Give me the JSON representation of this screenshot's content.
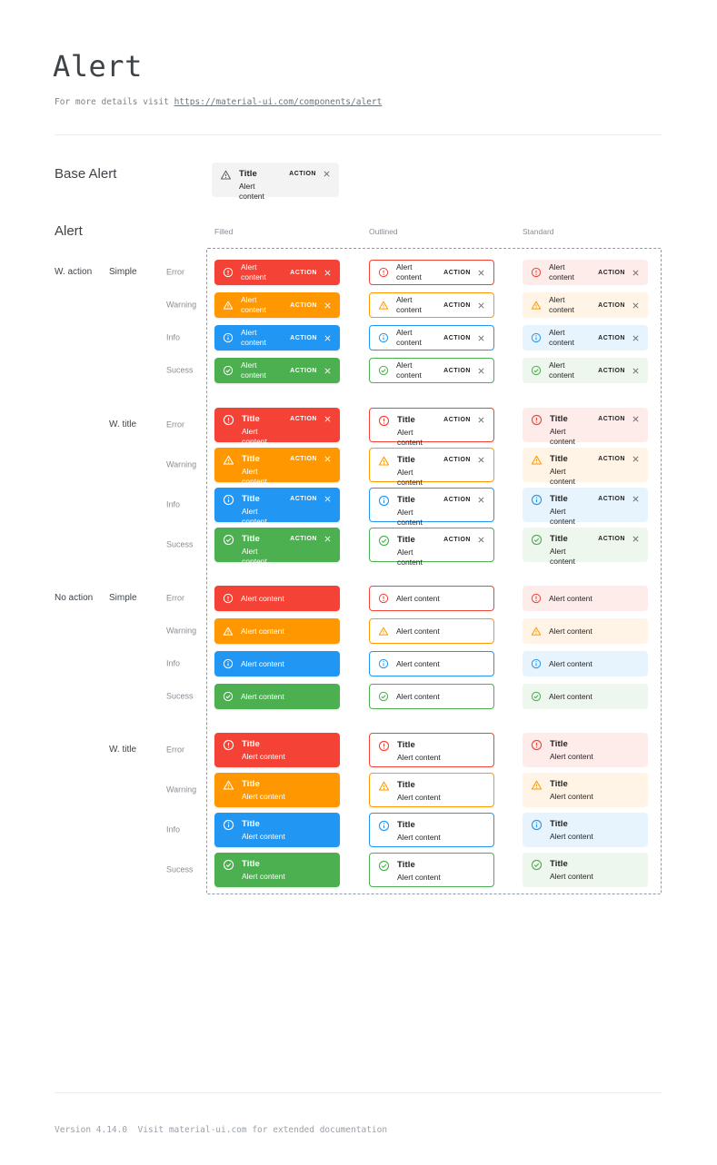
{
  "header": {
    "title": "Alert",
    "subtitle_prefix": "For more details visit ",
    "subtitle_link": "https://material-ui.com/components/alert"
  },
  "base_section": {
    "label": "Base Alert",
    "alert": {
      "title": "Title",
      "content": "Alert content",
      "action_label": "ACTION",
      "icon": "warning-triangle-icon",
      "close_icon": "close-icon",
      "background": "#f3f3f3",
      "icon_color": "#5f6368",
      "text_color": "#202124"
    }
  },
  "grid_section": {
    "label": "Alert",
    "columns": [
      {
        "label": "Filled",
        "variant": "filled"
      },
      {
        "label": "Outlined",
        "variant": "outlined"
      },
      {
        "label": "Standard",
        "variant": "standard"
      }
    ],
    "row_groups": [
      {
        "group_label": "W. action",
        "variant_label": "Simple",
        "with_title": false,
        "with_action": true
      },
      {
        "group_label": "",
        "variant_label": "W. title",
        "with_title": true,
        "with_action": true
      },
      {
        "group_label": "No action",
        "variant_label": "Simple",
        "with_title": false,
        "with_action": false
      },
      {
        "group_label": "",
        "variant_label": "W. title",
        "with_title": true,
        "with_action": false
      }
    ],
    "severities": [
      {
        "label": "Error",
        "key": "error",
        "icon": "error-circle-icon"
      },
      {
        "label": "Warning",
        "key": "warning",
        "icon": "warning-triangle-icon"
      },
      {
        "label": "Info",
        "key": "info",
        "icon": "info-circle-icon"
      },
      {
        "label": "Sucess",
        "key": "success",
        "icon": "success-check-icon"
      }
    ],
    "alert_title": "Title",
    "alert_content": "Alert content",
    "action_label": "ACTION",
    "close_icon": "close-icon"
  },
  "colors": {
    "error": {
      "main": "#f44336",
      "standard_bg": "#fdecea"
    },
    "warning": {
      "main": "#ff9800",
      "standard_bg": "#fff4e5"
    },
    "info": {
      "main": "#2196f3",
      "standard_bg": "#e8f4fd"
    },
    "success": {
      "main": "#4caf50",
      "standard_bg": "#edf7ed"
    }
  },
  "footer": {
    "text": "Version 4.14.0  Visit material-ui.com for extended documentation"
  }
}
